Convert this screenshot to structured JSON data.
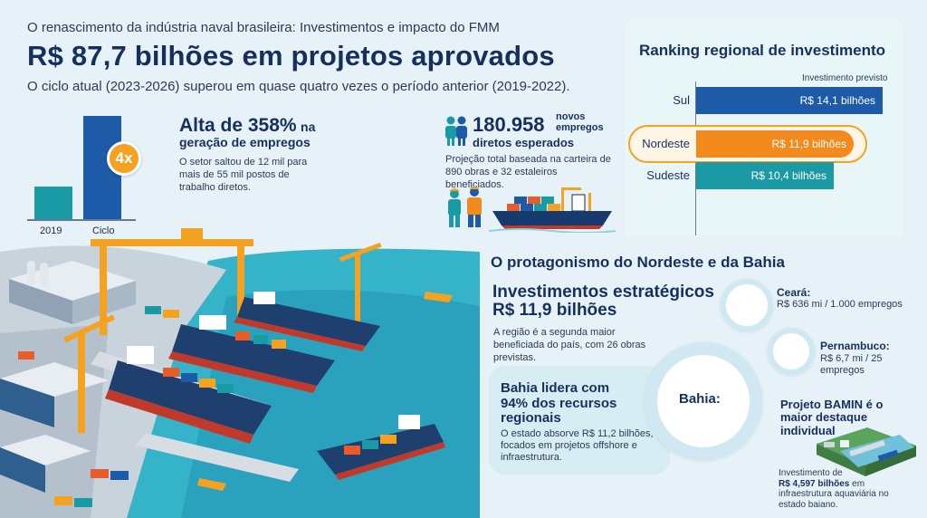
{
  "header": {
    "kicker": "O renascimento da indústria naval brasileira: Investimentos e impacto do FMM",
    "headline": "R$ 87,7 bilhões em projetos aprovados",
    "subtitle": "O ciclo atual (2023-2026) superou em quase quatro vezes o período anterior (2019-2022)."
  },
  "mini_chart": {
    "bar_labels": [
      "2019",
      "Ciclo"
    ],
    "badge": "4x",
    "colors": {
      "bar_2019": "#1a9aa5",
      "bar_ciclo": "#1d5ba8",
      "badge": "#f5a223"
    }
  },
  "jobs": {
    "title_big": "Alta de 358%",
    "title_small": "na",
    "title_line2": "geração de empregos",
    "text": "O setor saltou de 12 mil para mais de 55 mil postos de trabalho diretos."
  },
  "new_jobs": {
    "number": "180.958",
    "novos": "novos",
    "empregos": "empregos",
    "label": "diretos esperados",
    "text": "Projeção total baseada na carteira de 890 obras e 32 estaleiros beneficiados.",
    "icons": [
      "people-icon",
      "workers-icon",
      "cargo-ship-icon"
    ]
  },
  "ranking": {
    "title": "Ranking regional de investimento",
    "caption": "Investimento previsto",
    "rows": [
      {
        "name": "Sul",
        "value_label": "R$ 14,1 bilhões",
        "value": 14.1,
        "color": "#1d5ba8"
      },
      {
        "name": "Nordeste",
        "value_label": "R$ 11,9 bilhões",
        "value": 11.9,
        "color": "#f28a1e"
      },
      {
        "name": "Sudeste",
        "value_label": "R$ 10,4 bilhões",
        "value": 10.4,
        "color": "#1a9aa5"
      }
    ]
  },
  "nordeste": {
    "title": "O protagonismo do Nordeste e da Bahia",
    "inv_line1": "Investimentos estratégicos",
    "inv_line2": "R$ 11,9 bilhões",
    "text": "A região é a segunda maior beneficiada do país, com 26 obras previstas."
  },
  "states": {
    "ceara": {
      "title": "Ceará:",
      "text": "R$ 636 mi / 1.000 empregos"
    },
    "pernambuco": {
      "title": "Pernambuco:",
      "text": "R$ 6,7 mi / 25 empregos"
    },
    "bahia_bubble": "Bahia:"
  },
  "bahia": {
    "title": "Bahia lidera com 94% dos recursos regionais",
    "text": "O estado absorve R$ 11,2 bilhões, focados em projetos offshore e infraestrutura."
  },
  "bamin": {
    "title": "Projeto BAMIN é o maior destaque individual",
    "text_pre": "Investimento de",
    "text_value": "R$ 4,597 bilhões",
    "text_post": "em infraestrutura aquaviária no estado baiano."
  }
}
